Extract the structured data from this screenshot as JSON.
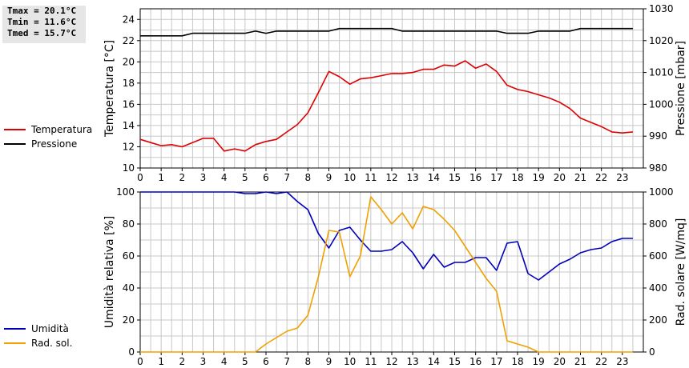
{
  "stats": {
    "tmax": "Tmax = 20.1°C",
    "tmin": "Tmin = 11.6°C",
    "tmed": "Tmed = 15.7°C"
  },
  "colors": {
    "temperature": "#dd0000",
    "pressure": "#000000",
    "humidity": "#0000bb",
    "radiation": "#f0a000",
    "grid": "#c8c8c8"
  },
  "chart_data": [
    {
      "type": "line",
      "grid": true,
      "x_ticks": [
        "0",
        "1",
        "2",
        "3",
        "4",
        "5",
        "6",
        "7",
        "8",
        "9",
        "10",
        "11",
        "12",
        "13",
        "14",
        "15",
        "16",
        "17",
        "18",
        "19",
        "20",
        "21",
        "22",
        "23"
      ],
      "xlim": [
        0,
        24
      ],
      "ylabel": "Temperatura [°C]",
      "ylim": [
        10,
        25
      ],
      "y_ticks": [
        "10",
        "12",
        "14",
        "16",
        "18",
        "20",
        "22",
        "24"
      ],
      "y2label": "Pressione [mbar]",
      "y2lim": [
        980,
        1030
      ],
      "y2_ticks": [
        "980",
        "990",
        "1000",
        "1010",
        "1020",
        "1030"
      ],
      "legend_position": "left",
      "series": [
        {
          "name": "Temperatura",
          "axis": "left",
          "x": [
            0,
            0.5,
            1,
            1.5,
            2,
            2.5,
            3,
            3.5,
            4,
            4.5,
            5,
            5.5,
            6,
            6.5,
            7,
            7.5,
            8,
            8.5,
            9,
            9.5,
            10,
            10.5,
            11,
            11.5,
            12,
            12.5,
            13,
            13.5,
            14,
            14.5,
            15,
            15.5,
            16,
            16.5,
            17,
            17.5,
            18,
            18.5,
            19,
            19.5,
            20,
            20.5,
            21,
            21.5,
            22,
            22.5,
            23,
            23.5
          ],
          "values": [
            12.7,
            12.4,
            12.1,
            12.2,
            12.0,
            12.4,
            12.8,
            12.8,
            11.6,
            11.8,
            11.6,
            12.2,
            12.5,
            12.7,
            13.4,
            14.1,
            15.2,
            17.1,
            19.1,
            18.6,
            17.9,
            18.4,
            18.5,
            18.7,
            18.9,
            18.9,
            19.0,
            19.3,
            19.3,
            19.7,
            19.6,
            20.1,
            19.4,
            19.8,
            19.1,
            17.8,
            17.4,
            17.2,
            16.9,
            16.6,
            16.2,
            15.6,
            14.7,
            14.3,
            13.9,
            13.4,
            13.3,
            13.4
          ]
        },
        {
          "name": "Pressione",
          "axis": "right",
          "x": [
            0,
            0.5,
            1,
            1.5,
            2,
            2.5,
            3,
            3.5,
            4,
            4.5,
            5,
            5.5,
            6,
            6.5,
            7,
            7.5,
            8,
            8.5,
            9,
            9.5,
            10,
            10.5,
            11,
            11.5,
            12,
            12.5,
            13,
            13.5,
            14,
            14.5,
            15,
            15.5,
            16,
            16.5,
            17,
            17.5,
            18,
            18.5,
            19,
            19.5,
            20,
            20.5,
            21,
            21.5,
            22,
            22.5,
            23,
            23.5
          ],
          "values": [
            1021.5,
            1021.5,
            1021.5,
            1021.5,
            1021.5,
            1022.3,
            1022.3,
            1022.3,
            1022.3,
            1022.3,
            1022.3,
            1023,
            1022.3,
            1023,
            1023,
            1023,
            1023,
            1023,
            1023,
            1023.8,
            1023.8,
            1023.8,
            1023.8,
            1023.8,
            1023.8,
            1023,
            1023,
            1023,
            1023,
            1023,
            1023,
            1023,
            1023,
            1023,
            1023,
            1022.3,
            1022.3,
            1022.3,
            1023,
            1023,
            1023,
            1023,
            1023.8,
            1023.8,
            1023.8,
            1023.8,
            1023.8,
            1023.8
          ]
        }
      ]
    },
    {
      "type": "line",
      "grid": true,
      "x_ticks": [
        "0",
        "1",
        "2",
        "3",
        "4",
        "5",
        "6",
        "7",
        "8",
        "9",
        "10",
        "11",
        "12",
        "13",
        "14",
        "15",
        "16",
        "17",
        "18",
        "19",
        "20",
        "21",
        "22",
        "23"
      ],
      "xlim": [
        0,
        24
      ],
      "ylabel": "Umidità relativa [%]",
      "ylim": [
        0,
        100
      ],
      "y_ticks": [
        "0",
        "20",
        "40",
        "60",
        "80",
        "100"
      ],
      "y2label": "Rad. solare [W/mq]",
      "y2lim": [
        0,
        1000
      ],
      "y2_ticks": [
        "0",
        "200",
        "400",
        "600",
        "800",
        "1000"
      ],
      "legend_position": "left",
      "series": [
        {
          "name": "Umidità",
          "axis": "left",
          "x": [
            0,
            0.5,
            1,
            1.5,
            2,
            2.5,
            3,
            3.5,
            4,
            4.5,
            5,
            5.5,
            6,
            6.5,
            7,
            7.5,
            8,
            8.5,
            9,
            9.5,
            10,
            10.5,
            11,
            11.5,
            12,
            12.5,
            13,
            13.5,
            14,
            14.5,
            15,
            15.5,
            16,
            16.5,
            17,
            17.5,
            18,
            18.5,
            19,
            19.5,
            20,
            20.5,
            21,
            21.5,
            22,
            22.5,
            23,
            23.5
          ],
          "values": [
            100,
            100,
            100,
            100,
            100,
            100,
            100,
            100,
            100,
            100,
            99,
            99,
            100,
            99,
            100,
            94,
            89,
            74,
            65,
            76,
            78,
            70,
            63,
            63,
            64,
            69,
            62,
            52,
            61,
            53,
            56,
            56,
            59,
            59,
            51,
            68,
            69,
            49,
            45,
            50,
            55,
            58,
            62,
            64,
            65,
            69,
            71,
            71
          ]
        },
        {
          "name": "Rad. sol.",
          "axis": "right",
          "x": [
            0,
            0.5,
            1,
            1.5,
            2,
            2.5,
            3,
            3.5,
            4,
            4.5,
            5,
            5.5,
            6,
            6.5,
            7,
            7.5,
            8,
            8.5,
            9,
            9.5,
            10,
            10.5,
            11,
            11.5,
            12,
            12.5,
            13,
            13.5,
            14,
            14.5,
            15,
            15.5,
            16,
            16.5,
            17,
            17.5,
            18,
            18.5,
            19,
            19.5,
            20,
            20.5,
            21,
            21.5,
            22,
            22.5,
            23,
            23.5
          ],
          "values": [
            0,
            0,
            0,
            0,
            0,
            0,
            0,
            0,
            0,
            0,
            0,
            0,
            50,
            90,
            130,
            150,
            230,
            470,
            760,
            750,
            470,
            600,
            970,
            890,
            800,
            870,
            770,
            910,
            890,
            830,
            760,
            660,
            560,
            460,
            380,
            70,
            50,
            30,
            0,
            0,
            0,
            0,
            0,
            0,
            0,
            0,
            0,
            0
          ]
        }
      ]
    }
  ]
}
